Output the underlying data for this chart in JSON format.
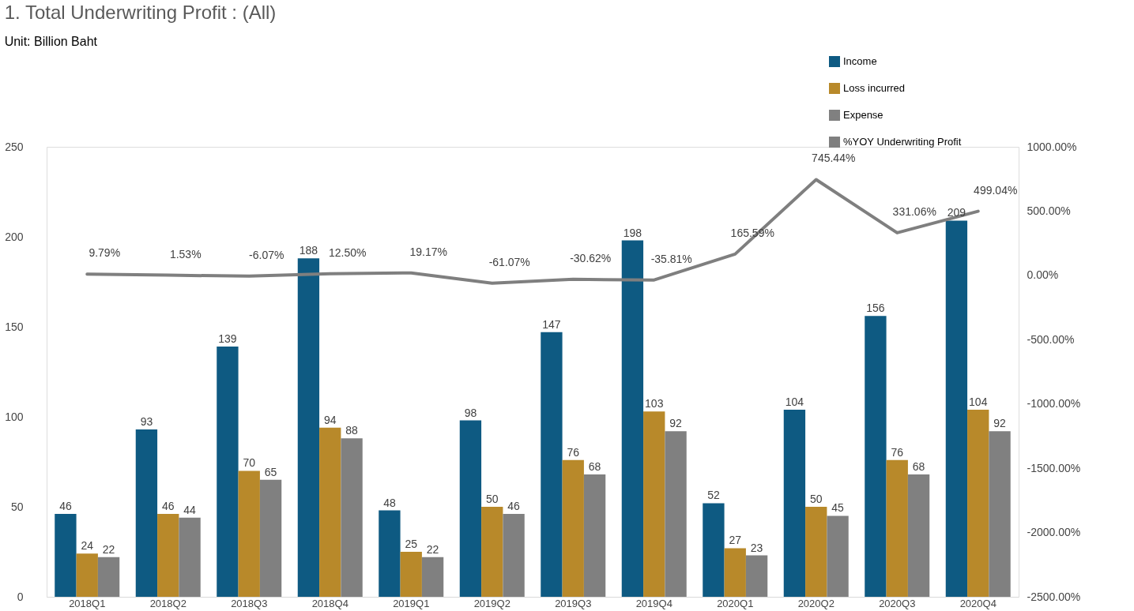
{
  "chart_data": {
    "type": "bar",
    "title": "1. Total Underwriting Profit : (All)",
    "annotations": [
      "Unit: Billion Baht"
    ],
    "categories": [
      "2018Q1",
      "2018Q2",
      "2018Q3",
      "2018Q4",
      "2019Q1",
      "2019Q2",
      "2019Q3",
      "2019Q4",
      "2020Q1",
      "2020Q2",
      "2020Q3",
      "2020Q4"
    ],
    "series": [
      {
        "name": "Income",
        "color": "#0e5a82",
        "values": [
          46,
          93,
          139,
          188,
          48,
          98,
          147,
          198,
          52,
          104,
          156,
          209
        ]
      },
      {
        "name": "Loss incurred",
        "color": "#b8892a",
        "values": [
          24,
          46,
          70,
          94,
          25,
          50,
          76,
          103,
          27,
          50,
          76,
          104
        ]
      },
      {
        "name": "Expense",
        "color": "#808080",
        "values": [
          22,
          44,
          65,
          88,
          22,
          46,
          68,
          92,
          23,
          45,
          68,
          92
        ]
      },
      {
        "name": "%YOY Underwriting Profit",
        "type": "line",
        "axis": "y2",
        "color": "#7f7f7f",
        "marker": "none",
        "line_style": "solid",
        "values": [
          9.79,
          1.53,
          -6.07,
          12.5,
          19.17,
          -61.07,
          -30.62,
          -35.81,
          165.59,
          745.44,
          331.06,
          499.04
        ],
        "value_labels": [
          "9.79%",
          "1.53%",
          "-6.07%",
          "12.50%",
          "19.17%",
          "-61.07%",
          "-30.62%",
          "-35.81%",
          "165.59%",
          "745.44%",
          "331.06%",
          "499.04%"
        ]
      }
    ],
    "data_labels": true,
    "ylim": [
      0,
      250
    ],
    "yticks": [
      0,
      50,
      100,
      150,
      200,
      250
    ],
    "y2lim": [
      -2500,
      1000
    ],
    "y2ticks": [
      {
        "value": -2500,
        "label": "-2500.00%"
      },
      {
        "value": -2000,
        "label": "-2000.00%"
      },
      {
        "value": -1500,
        "label": "-1500.00%"
      },
      {
        "value": -1000,
        "label": "-1000.00%"
      },
      {
        "value": -500,
        "label": "-500.00%"
      },
      {
        "value": 0,
        "label": "0.00%"
      },
      {
        "value": 500,
        "label": "500.00%"
      },
      {
        "value": 1000,
        "label": "1000.00%"
      }
    ],
    "grid": false,
    "legend": "top right"
  }
}
